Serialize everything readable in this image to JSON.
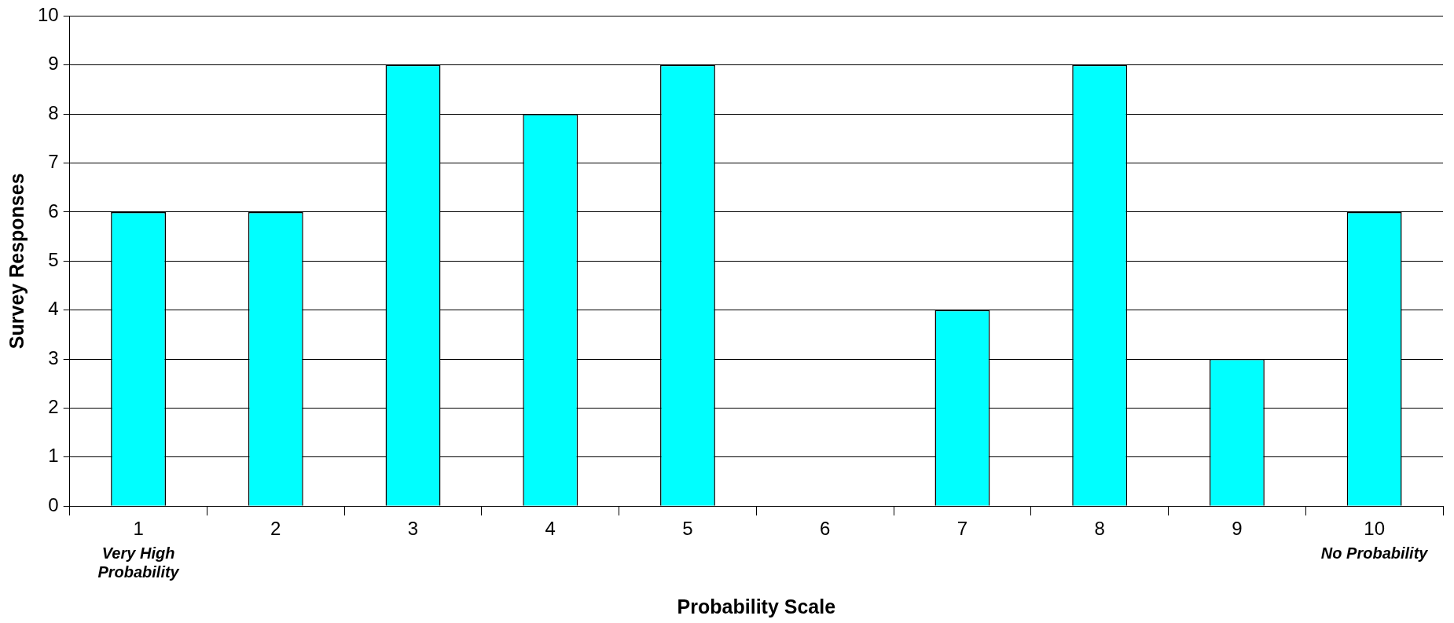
{
  "chart_data": {
    "type": "bar",
    "xlabel": "Probability Scale",
    "ylabel": "Survey Responses",
    "categories": [
      "1",
      "2",
      "3",
      "4",
      "5",
      "6",
      "7",
      "8",
      "9",
      "10"
    ],
    "values": [
      6,
      6,
      9,
      8,
      9,
      0,
      4,
      9,
      3,
      6
    ],
    "color": "#00ffff",
    "ylim": [
      0,
      10
    ],
    "yticks": [
      0,
      1,
      2,
      3,
      4,
      5,
      6,
      7,
      8,
      9,
      10
    ],
    "grid": "y",
    "legend": false,
    "annotations": [
      "Very High Probability",
      "No Probability"
    ]
  }
}
